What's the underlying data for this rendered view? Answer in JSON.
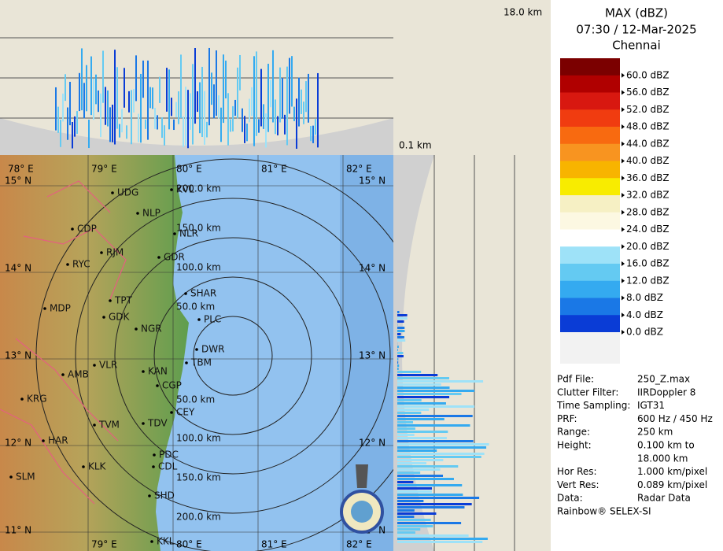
{
  "header": {
    "title": "MAX (dBZ)",
    "datetime": "07:30 / 12-Mar-2025",
    "station": "Chennai"
  },
  "profile": {
    "height_max": "18.0 km",
    "height_min": "0.1 km"
  },
  "legend": {
    "labels": [
      "60.0 dBZ",
      "56.0 dBZ",
      "52.0 dBZ",
      "48.0 dBZ",
      "44.0 dBZ",
      "40.0 dBZ",
      "36.0 dBZ",
      "32.0 dBZ",
      "28.0 dBZ",
      "24.0 dBZ",
      "20.0 dBZ",
      "16.0 dBZ",
      "12.0 dBZ",
      "8.0 dBZ",
      "4.0 dBZ",
      "0.0 dBZ"
    ],
    "colors": [
      "#7b0000",
      "#b00000",
      "#d81810",
      "#f03c10",
      "#f86a10",
      "#f89420",
      "#f8b400",
      "#f8ec00",
      "#f6f0c4",
      "#fcf8e2",
      "#ffffff",
      "#9ee2f8",
      "#64caf2",
      "#34aaf0",
      "#1a78e6",
      "#0a3cd6"
    ]
  },
  "map": {
    "longitudes": [
      "78° E",
      "79° E",
      "80° E",
      "81° E",
      "82° E"
    ],
    "latitudes": [
      "15° N",
      "14° N",
      "13° N",
      "12° N",
      "11° N"
    ],
    "ranges_north": [
      "200.0 km",
      "150.0 km",
      "100.0 km",
      "50.0 km"
    ],
    "ranges_south": [
      "50.0 km",
      "100.0 km",
      "150.0 km",
      "200.0 km"
    ],
    "cities": [
      "UDG",
      "KVL",
      "NLP",
      "CDP",
      "NLR",
      "RJM",
      "GDR",
      "RYC",
      "SHAR",
      "TPT",
      "MDP",
      "PLC",
      "GDK",
      "NGR",
      "DWR",
      "TBM",
      "VLR",
      "KAN",
      "AMB",
      "CGP",
      "KRG",
      "CEY",
      "TVM",
      "TDV",
      "HAR",
      "PDC",
      "CDL",
      "KLK",
      "SLM",
      "SHD",
      "KKL"
    ]
  },
  "info": {
    "rows": [
      {
        "label": "Pdf File:",
        "value": [
          "250_Z.max"
        ]
      },
      {
        "label": "Clutter Filter:",
        "value": [
          "IIRDoppler 8"
        ]
      },
      {
        "label": "Time Sampling:",
        "value": [
          "IGT31"
        ]
      },
      {
        "label": "PRF:",
        "value": [
          "600 Hz / 450 Hz"
        ]
      },
      {
        "label": "Range:",
        "value": [
          "250 km"
        ]
      },
      {
        "label": "Height:",
        "value": [
          "0.100 km to",
          "18.000 km"
        ]
      },
      {
        "label": "Hor Res:",
        "value": [
          "1.000 km/pixel"
        ]
      },
      {
        "label": "Vert Res:",
        "value": [
          "0.089 km/pixel"
        ]
      },
      {
        "label": "Data:",
        "value": [
          "Radar Data"
        ]
      }
    ],
    "footer": "Rainbow® SELEX-SI"
  }
}
